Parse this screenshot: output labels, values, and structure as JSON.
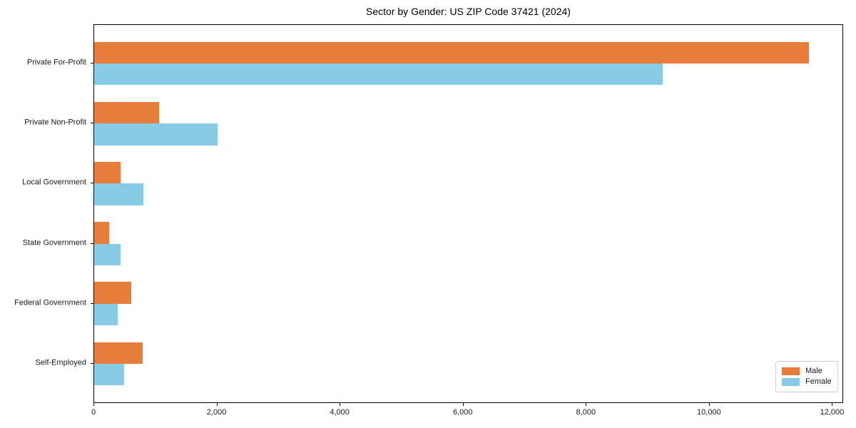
{
  "title": "Sector by Gender: US ZIP Code 37421 (2024)",
  "chart_data": {
    "type": "bar",
    "orientation": "horizontal",
    "title": "Sector by Gender: US ZIP Code 37421 (2024)",
    "categories": [
      "Private For-Profit",
      "Private Non-Profit",
      "Local Government",
      "State Government",
      "Federal Government",
      "Self-Employed"
    ],
    "series": [
      {
        "name": "Male",
        "color": "#e87c3a",
        "values": [
          11610,
          1060,
          430,
          240,
          600,
          790
        ]
      },
      {
        "name": "Female",
        "color": "#87cbe6",
        "values": [
          9240,
          2000,
          800,
          430,
          380,
          490
        ]
      }
    ],
    "xlabel": "",
    "ylabel": "",
    "xlim": [
      0,
      12180
    ],
    "xticks": [
      0,
      2000,
      4000,
      6000,
      8000,
      10000,
      12000
    ],
    "xticklabels": [
      "0",
      "2,000",
      "4,000",
      "6,000",
      "8,000",
      "10,000",
      "12,000"
    ],
    "grid": false,
    "legend": {
      "position": "lower-right",
      "entries": [
        "Male",
        "Female"
      ]
    }
  }
}
